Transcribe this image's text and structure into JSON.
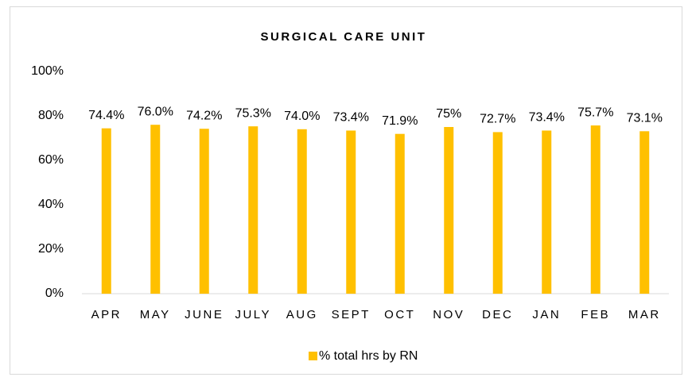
{
  "chart_data": {
    "type": "bar",
    "title": "SURGICAL CARE UNIT",
    "categories": [
      "APR",
      "MAY",
      "JUNE",
      "JULY",
      "AUG",
      "SEPT",
      "OCT",
      "NOV",
      "DEC",
      "JAN",
      "FEB",
      "MAR"
    ],
    "series": [
      {
        "name": "% total hrs by RN",
        "color": "#ffc000",
        "values": [
          74.4,
          76.0,
          74.2,
          75.3,
          74.0,
          73.4,
          71.9,
          75,
          72.7,
          73.4,
          75.7,
          73.1
        ],
        "value_labels": [
          "74.4%",
          "76.0%",
          "74.2%",
          "75.3%",
          "74.0%",
          "73.4%",
          "71.9%",
          "75%",
          "72.7%",
          "73.4%",
          "75.7%",
          "73.1%"
        ]
      }
    ],
    "ylim": [
      0,
      100
    ],
    "yticks": [
      {
        "value": 0,
        "label": "0%"
      },
      {
        "value": 20,
        "label": "20%"
      },
      {
        "value": 40,
        "label": "40%"
      },
      {
        "value": 60,
        "label": "60%"
      },
      {
        "value": 80,
        "label": "80%"
      },
      {
        "value": 100,
        "label": "100%"
      }
    ],
    "grid": false,
    "legend": "bottom"
  }
}
